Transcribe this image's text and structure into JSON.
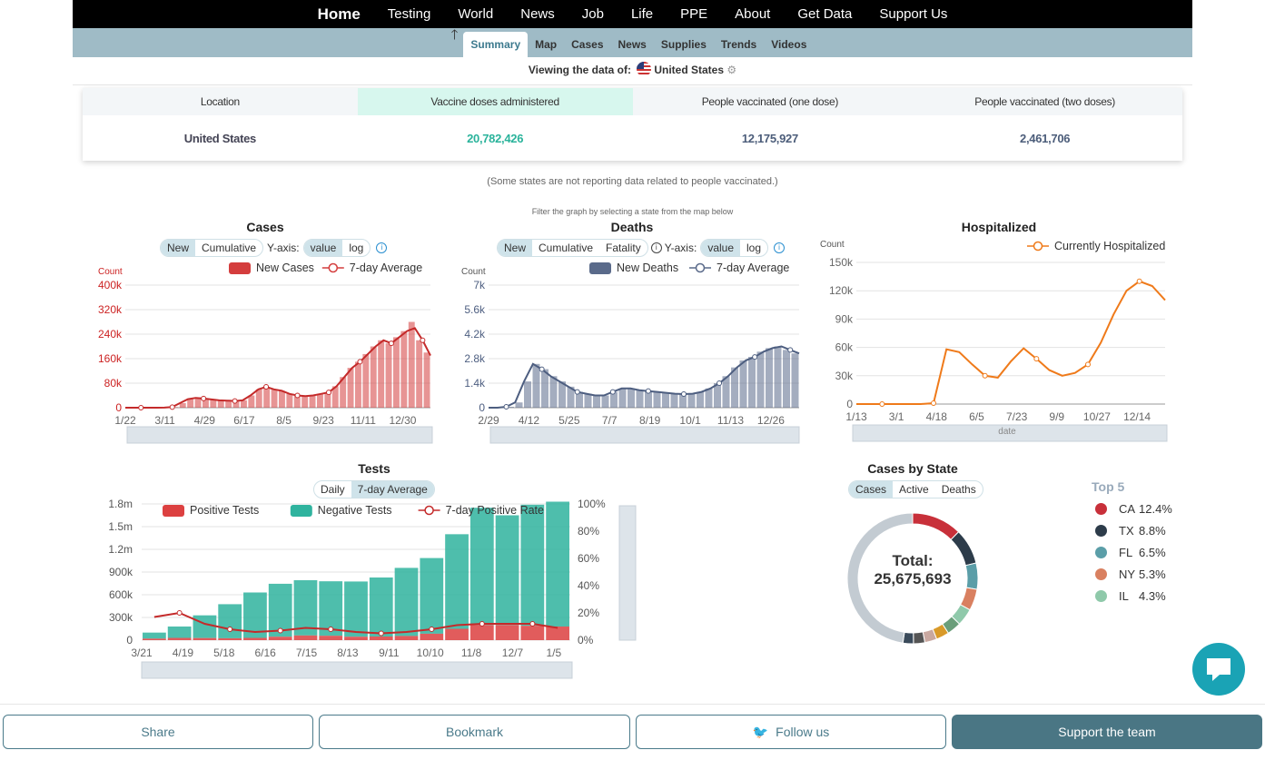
{
  "topnav": [
    "Home",
    "Testing",
    "World",
    "News",
    "Job",
    "Life",
    "PPE",
    "About",
    "Get Data",
    "Support Us"
  ],
  "subnav": {
    "arrow": "🡑",
    "tabs": [
      "Summary",
      "Map",
      "Cases",
      "News",
      "Supplies",
      "Trends",
      "Videos"
    ]
  },
  "viewing": {
    "label": "Viewing the data of:",
    "location": "United States"
  },
  "vaccine_table": {
    "headers": [
      "Location",
      "Vaccine doses administered",
      "People vaccinated (one dose)",
      "People vaccinated (two doses)"
    ],
    "row": [
      "United States",
      "20,782,426",
      "12,175,927",
      "2,461,706"
    ]
  },
  "note": "(Some states are not reporting data related to people vaccinated.)",
  "filter_hint": "Filter the graph by selecting a state from the map below",
  "colors": {
    "cases": "#d43d3d",
    "deaths": "#5a6a8a",
    "hosp": "#ef7a1a",
    "pos": "#dc4040",
    "neg": "#2fb39e",
    "accent": "#4a7684"
  },
  "cases_panel": {
    "title": "Cases",
    "toggle": [
      "New",
      "Cumulative"
    ],
    "yaxis_label": "Y-axis:",
    "scale": [
      "value",
      "log"
    ],
    "legend": [
      "New Cases",
      "7-day Average"
    ],
    "unit": "Count"
  },
  "deaths_panel": {
    "title": "Deaths",
    "toggle": [
      "New",
      "Cumulative",
      "Fatality"
    ],
    "yaxis_label": "Y-axis:",
    "scale": [
      "value",
      "log"
    ],
    "legend": [
      "New Deaths",
      "7-day Average"
    ],
    "unit": "Count"
  },
  "hosp_panel": {
    "title": "Hospitalized",
    "legend": [
      "Currently Hospitalized"
    ],
    "unit": "Count",
    "xname": "date"
  },
  "tests_panel": {
    "title": "Tests",
    "toggle": [
      "Daily",
      "7-day Average"
    ],
    "legend": [
      "Positive Tests",
      "Negative Tests",
      "7-day Positive Rate"
    ]
  },
  "state_panel": {
    "title": "Cases by State",
    "toggle": [
      "Cases",
      "Active",
      "Deaths"
    ],
    "total_label": "Total:",
    "total": "25,675,693"
  },
  "top5": {
    "header": "Top 5",
    "items": [
      {
        "state": "CA",
        "pct": "12.4%",
        "color": "#c8303a"
      },
      {
        "state": "TX",
        "pct": "8.8%",
        "color": "#2d3c4a"
      },
      {
        "state": "FL",
        "pct": "6.5%",
        "color": "#5b9ea8"
      },
      {
        "state": "NY",
        "pct": "5.3%",
        "color": "#d98060"
      },
      {
        "state": "IL",
        "pct": "4.3%",
        "color": "#8fc9aa"
      }
    ]
  },
  "buttons": {
    "share": "Share",
    "bookmark": "Bookmark",
    "follow": "Follow us",
    "support": "Support the team"
  },
  "chart_data": [
    {
      "type": "bar",
      "title": "Cases",
      "ylabel": "Count",
      "ylim": [
        0,
        400000
      ],
      "yticks": [
        "0",
        "80k",
        "160k",
        "240k",
        "320k",
        "400k"
      ],
      "xticks": [
        "1/22",
        "3/11",
        "4/29",
        "6/17",
        "8/5",
        "9/23",
        "11/11",
        "12/30"
      ],
      "series": [
        {
          "name": "New Cases",
          "values": [
            0,
            0,
            0,
            0,
            0,
            200,
            2000,
            15000,
            28000,
            32000,
            30000,
            27000,
            24000,
            23000,
            22000,
            24000,
            40000,
            60000,
            68000,
            60000,
            55000,
            45000,
            40000,
            38000,
            40000,
            45000,
            50000,
            70000,
            100000,
            130000,
            150000,
            175000,
            200000,
            220000,
            210000,
            230000,
            250000,
            280000,
            220000,
            180000
          ]
        },
        {
          "name": "7-day Average",
          "values": [
            0,
            0,
            0,
            0,
            0,
            200,
            2000,
            15000,
            28000,
            32000,
            30000,
            27000,
            24000,
            23000,
            22000,
            24000,
            40000,
            60000,
            68000,
            60000,
            55000,
            45000,
            40000,
            38000,
            40000,
            45000,
            50000,
            70000,
            100000,
            130000,
            150000,
            175000,
            200000,
            220000,
            210000,
            230000,
            250000,
            260000,
            220000,
            170000
          ]
        }
      ]
    },
    {
      "type": "bar",
      "title": "Deaths",
      "ylabel": "Count",
      "ylim": [
        0,
        7000
      ],
      "yticks": [
        "0",
        "1.4k",
        "2.8k",
        "4.2k",
        "5.6k",
        "7k"
      ],
      "xticks": [
        "2/29",
        "4/12",
        "5/25",
        "7/7",
        "8/19",
        "10/1",
        "11/13",
        "12/26"
      ],
      "series": [
        {
          "name": "New Deaths",
          "values": [
            0,
            0,
            50,
            300,
            1500,
            2500,
            2200,
            1800,
            1500,
            1200,
            900,
            800,
            700,
            700,
            900,
            1100,
            1100,
            1000,
            950,
            900,
            850,
            800,
            780,
            800,
            900,
            1100,
            1400,
            1800,
            2300,
            2700,
            2900,
            3200,
            3400,
            3500,
            3300,
            3100
          ]
        },
        {
          "name": "7-day Average",
          "values": [
            0,
            0,
            50,
            300,
            1500,
            2500,
            2200,
            1800,
            1500,
            1200,
            900,
            800,
            700,
            700,
            900,
            1100,
            1100,
            1000,
            950,
            900,
            850,
            800,
            780,
            800,
            900,
            1100,
            1400,
            1800,
            2300,
            2700,
            2900,
            3200,
            3400,
            3500,
            3300,
            3100
          ]
        }
      ]
    },
    {
      "type": "line",
      "title": "Hospitalized",
      "ylabel": "Count",
      "xlabel": "date",
      "ylim": [
        0,
        150000
      ],
      "yticks": [
        "0",
        "30k",
        "60k",
        "90k",
        "120k",
        "150k"
      ],
      "xticks": [
        "1/13",
        "3/1",
        "4/18",
        "6/5",
        "7/23",
        "9/9",
        "10/27",
        "12/14"
      ],
      "series": [
        {
          "name": "Currently Hospitalized",
          "values": [
            0,
            0,
            0,
            0,
            0,
            0,
            1000,
            58000,
            55000,
            42000,
            30000,
            28000,
            45000,
            59000,
            48000,
            36000,
            30000,
            33000,
            42000,
            65000,
            95000,
            120000,
            130000,
            125000,
            110000
          ]
        }
      ]
    },
    {
      "type": "bar",
      "title": "Tests",
      "ylim": [
        0,
        1800000
      ],
      "yticks": [
        "0",
        "300k",
        "600k",
        "900k",
        "1.2m",
        "1.5m",
        "1.8m"
      ],
      "y2ticks": [
        "0%",
        "20%",
        "40%",
        "60%",
        "80%",
        "100%"
      ],
      "xticks": [
        "3/21",
        "4/19",
        "5/18",
        "6/16",
        "7/15",
        "8/13",
        "9/11",
        "10/10",
        "11/8",
        "12/7",
        "1/5"
      ],
      "series": [
        {
          "name": "Positive Tests",
          "values": [
            20000,
            30000,
            28000,
            25000,
            30000,
            45000,
            62000,
            58000,
            45000,
            48000,
            55000,
            85000,
            150000,
            200000,
            200000,
            190000,
            180000
          ]
        },
        {
          "name": "Negative Tests",
          "values": [
            80000,
            150000,
            300000,
            450000,
            600000,
            700000,
            730000,
            720000,
            730000,
            780000,
            900000,
            1000000,
            1250000,
            1550000,
            1450000,
            1600000,
            1650000
          ]
        },
        {
          "name": "7-day Positive Rate",
          "values": [
            17,
            20,
            12,
            8,
            6,
            7,
            9,
            8,
            6,
            5,
            6,
            8,
            11,
            12,
            12,
            12,
            9
          ]
        }
      ]
    },
    {
      "type": "pie",
      "title": "Cases by State",
      "categories": [
        "CA",
        "TX",
        "FL",
        "NY",
        "IL",
        "other"
      ],
      "values": [
        12.4,
        8.8,
        6.5,
        5.3,
        4.3,
        62.7
      ]
    }
  ]
}
